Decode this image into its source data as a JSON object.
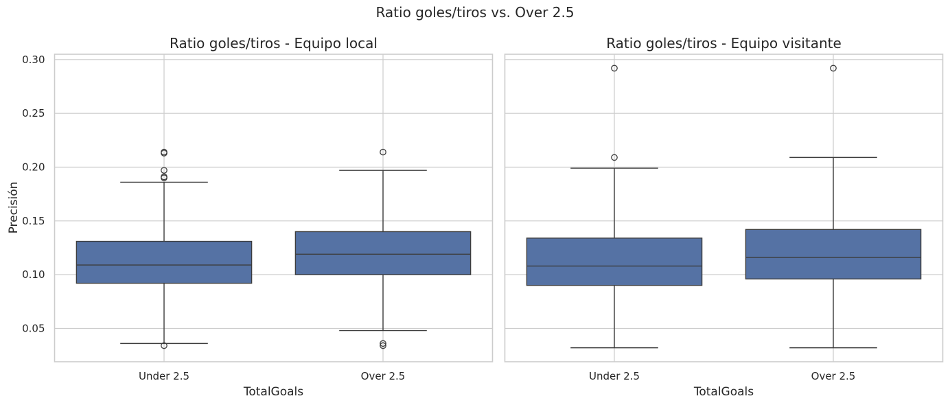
{
  "figure": {
    "suptitle": "Ratio goles/tiros vs. Over 2.5"
  },
  "colors": {
    "box_fill": "#5572a4",
    "line": "#3d3d3d",
    "grid": "#cccccc",
    "spine": "#cccccc",
    "text": "#262626"
  },
  "chart_data": [
    {
      "type": "box",
      "title": "Ratio goles/tiros - Equipo local",
      "xlabel": "TotalGoals",
      "ylabel": "Precisión",
      "categories": [
        "Under 2.5",
        "Over 2.5"
      ],
      "ylim": [
        0.019,
        0.305
      ],
      "yticks": [
        0.05,
        0.1,
        0.15,
        0.2,
        0.25,
        0.3
      ],
      "ytick_labels": [
        "0.05",
        "0.10",
        "0.15",
        "0.20",
        "0.25",
        "0.30"
      ],
      "grid": true,
      "boxes": [
        {
          "category": "Under 2.5",
          "whisker_low": 0.036,
          "q1": 0.092,
          "median": 0.109,
          "q3": 0.131,
          "whisker_high": 0.186,
          "outliers": [
            0.034,
            0.191,
            0.19,
            0.197,
            0.214,
            0.213
          ]
        },
        {
          "category": "Over 2.5",
          "whisker_low": 0.048,
          "q1": 0.1,
          "median": 0.119,
          "q3": 0.14,
          "whisker_high": 0.197,
          "outliers": [
            0.034,
            0.036,
            0.214
          ]
        }
      ]
    },
    {
      "type": "box",
      "title": "Ratio goles/tiros - Equipo visitante",
      "xlabel": "TotalGoals",
      "ylabel": "",
      "categories": [
        "Under 2.5",
        "Over 2.5"
      ],
      "ylim": [
        0.019,
        0.305
      ],
      "yticks": [
        0.05,
        0.1,
        0.15,
        0.2,
        0.25,
        0.3
      ],
      "ytick_labels": [],
      "grid": true,
      "boxes": [
        {
          "category": "Under 2.5",
          "whisker_low": 0.032,
          "q1": 0.09,
          "median": 0.108,
          "q3": 0.134,
          "whisker_high": 0.199,
          "outliers": [
            0.209,
            0.292
          ]
        },
        {
          "category": "Over 2.5",
          "whisker_low": 0.032,
          "q1": 0.096,
          "median": 0.116,
          "q3": 0.142,
          "whisker_high": 0.209,
          "outliers": [
            0.292
          ]
        }
      ]
    }
  ]
}
